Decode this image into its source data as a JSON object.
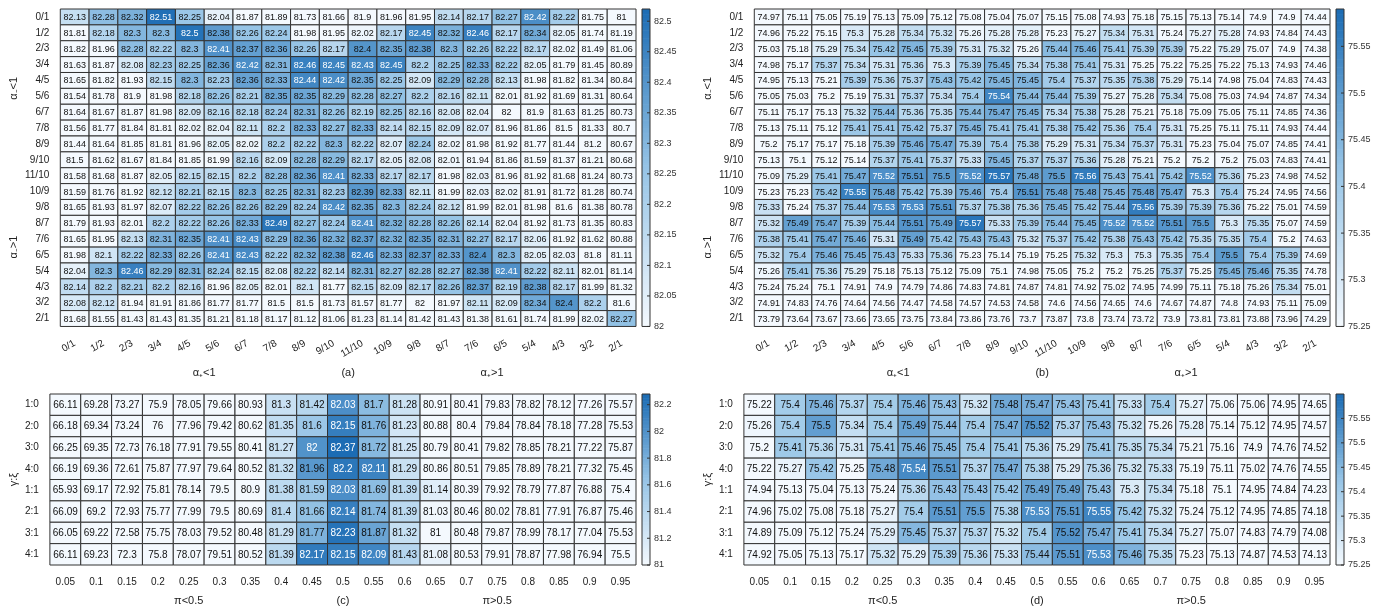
{
  "chart_data": [
    {
      "type": "heatmap",
      "xlabel": "(a)",
      "annotations": [
        "α₊<1",
        "α₊>1",
        "α₋<1",
        "α₋>1"
      ],
      "data_labels": true,
      "clim": [
        82,
        82.52
      ],
      "cticks": [
        82,
        82.05,
        82.1,
        82.15,
        82.2,
        82.25,
        82.3,
        82.35,
        82.4,
        82.45,
        82.5
      ],
      "categories": [
        "0/1",
        "1/2",
        "2/3",
        "3/4",
        "4/5",
        "5/6",
        "6/7",
        "7/8",
        "8/9",
        "9/10",
        "11/10",
        "10/9",
        "9/8",
        "8/7",
        "7/6",
        "6/5",
        "5/4",
        "4/3",
        "3/2",
        "2/1"
      ],
      "y_categories": [
        "0/1",
        "1/2",
        "2/3",
        "3/4",
        "4/5",
        "5/6",
        "6/7",
        "7/8",
        "8/9",
        "9/10",
        "11/10",
        "10/9",
        "9/8",
        "8/7",
        "7/6",
        "6/5",
        "5/4",
        "4/3",
        "3/2",
        "2/1"
      ],
      "cells": [
        [
          82.13,
          82.28,
          82.32,
          82.51,
          82.25,
          82.04,
          81.87,
          81.89,
          81.73,
          81.66,
          81.9,
          81.96,
          81.95,
          82.14,
          82.17,
          82.27,
          82.42,
          82.22,
          81.75,
          81
        ],
        [
          81.81,
          82.18,
          82.3,
          82.3,
          82.5,
          82.38,
          82.26,
          82.24,
          81.98,
          81.95,
          82.02,
          82.17,
          82.45,
          82.32,
          82.46,
          82.17,
          82.34,
          82.05,
          81.74,
          81.19
        ],
        [
          81.82,
          81.96,
          82.28,
          82.22,
          82.3,
          82.41,
          82.37,
          82.36,
          82.26,
          82.17,
          82.4,
          82.35,
          82.38,
          82.3,
          82.26,
          82.22,
          82.17,
          82.02,
          81.49,
          81.06
        ],
        [
          81.63,
          81.87,
          82.08,
          82.23,
          82.25,
          82.36,
          82.42,
          82.31,
          82.46,
          82.45,
          82.43,
          82.45,
          82.2,
          82.25,
          82.33,
          82.22,
          82.05,
          81.79,
          81.45,
          80.89
        ],
        [
          81.65,
          81.82,
          81.93,
          82.15,
          82.3,
          82.23,
          82.36,
          82.33,
          82.44,
          82.42,
          82.35,
          82.25,
          82.09,
          82.29,
          82.28,
          82.13,
          81.98,
          81.82,
          81.34,
          80.84
        ],
        [
          81.54,
          81.78,
          81.9,
          81.98,
          82.18,
          82.26,
          82.21,
          82.35,
          82.35,
          82.29,
          82.28,
          82.27,
          82.2,
          82.16,
          82.11,
          82.01,
          81.92,
          81.69,
          81.31,
          80.64
        ],
        [
          81.64,
          81.67,
          81.87,
          81.98,
          82.09,
          82.16,
          82.18,
          82.24,
          82.31,
          82.26,
          82.19,
          82.25,
          82.16,
          82.08,
          82.04,
          82,
          81.9,
          81.63,
          81.25,
          80.73
        ],
        [
          81.56,
          81.77,
          81.84,
          81.81,
          82.02,
          82.04,
          82.11,
          82.2,
          82.33,
          82.27,
          82.33,
          82.14,
          82.15,
          82.09,
          82.07,
          81.96,
          81.86,
          81.5,
          81.33,
          80.7
        ],
        [
          81.44,
          81.64,
          81.85,
          81.81,
          81.96,
          82.05,
          82.02,
          82.2,
          82.22,
          82.3,
          82.22,
          82.07,
          82.24,
          82.02,
          81.98,
          81.92,
          81.77,
          81.44,
          81.2,
          80.67
        ],
        [
          81.5,
          81.62,
          81.67,
          81.84,
          81.85,
          81.99,
          82.16,
          82.09,
          82.28,
          82.29,
          82.17,
          82.05,
          82.08,
          82.01,
          81.94,
          81.86,
          81.59,
          81.37,
          81.21,
          80.68
        ],
        [
          81.58,
          81.68,
          81.87,
          82.05,
          82.15,
          82.15,
          82.2,
          82.28,
          82.36,
          82.41,
          82.33,
          82.17,
          82.17,
          81.98,
          82.03,
          81.96,
          81.92,
          81.68,
          81.24,
          80.73
        ],
        [
          81.59,
          81.76,
          81.92,
          82.12,
          82.21,
          82.15,
          82.3,
          82.25,
          82.31,
          82.23,
          82.39,
          82.33,
          82.11,
          81.99,
          82.03,
          82.02,
          81.91,
          81.72,
          81.28,
          80.74
        ],
        [
          81.65,
          81.93,
          81.97,
          82.07,
          82.22,
          82.26,
          82.26,
          82.29,
          82.24,
          82.42,
          82.35,
          82.3,
          82.24,
          82.12,
          81.99,
          82.01,
          81.98,
          81.6,
          81.38,
          80.78
        ],
        [
          81.79,
          81.93,
          82.01,
          82.2,
          82.22,
          82.26,
          82.33,
          82.49,
          82.27,
          82.24,
          82.41,
          82.32,
          82.28,
          82.26,
          82.14,
          82.04,
          81.92,
          81.73,
          81.35,
          80.83
        ],
        [
          81.65,
          81.95,
          82.13,
          82.31,
          82.35,
          82.41,
          82.43,
          82.29,
          82.36,
          82.32,
          82.37,
          82.32,
          82.35,
          82.31,
          82.27,
          82.17,
          82.06,
          81.92,
          81.62,
          80.88
        ],
        [
          81.98,
          82.1,
          82.22,
          82.33,
          82.26,
          82.41,
          82.43,
          82.22,
          82.32,
          82.38,
          82.46,
          82.33,
          82.37,
          82.33,
          82.4,
          82.3,
          82.05,
          82.03,
          81.8,
          81.11
        ],
        [
          82.04,
          82.3,
          82.46,
          82.29,
          82.31,
          82.24,
          82.15,
          82.08,
          82.22,
          82.14,
          82.31,
          82.27,
          82.28,
          82.27,
          82.38,
          82.41,
          82.22,
          82.11,
          82.01,
          81.14
        ],
        [
          82.14,
          82.2,
          82.21,
          82.2,
          82.16,
          81.96,
          82.05,
          82.01,
          82.1,
          81.77,
          82.15,
          82.09,
          82.17,
          82.26,
          82.37,
          82.19,
          82.38,
          82.17,
          81.99,
          81.32
        ],
        [
          82.08,
          82.12,
          81.94,
          81.91,
          81.86,
          81.77,
          81.77,
          81.5,
          81.5,
          81.73,
          81.57,
          81.77,
          82,
          81.97,
          82.11,
          82.09,
          82.34,
          82.4,
          82.2,
          81.6
        ],
        [
          81.68,
          81.55,
          81.43,
          81.43,
          81.35,
          81.21,
          81.18,
          81.17,
          81.12,
          81.06,
          81.23,
          81.14,
          81.42,
          81.43,
          81.38,
          81.61,
          81.74,
          81.99,
          82.02,
          82.27
        ]
      ]
    },
    {
      "type": "heatmap",
      "xlabel": "(b)",
      "annotations": [
        "α₊<1",
        "α₊>1",
        "α₋<1",
        "α₋>1"
      ],
      "data_labels": true,
      "clim": [
        75.25,
        75.59
      ],
      "cticks": [
        75.25,
        75.3,
        75.35,
        75.4,
        75.45,
        75.5,
        75.55
      ],
      "categories": [
        "0/1",
        "1/2",
        "2/3",
        "3/4",
        "4/5",
        "5/6",
        "6/7",
        "7/8",
        "8/9",
        "9/10",
        "11/10",
        "10/9",
        "9/8",
        "8/7",
        "7/6",
        "6/5",
        "5/4",
        "4/3",
        "3/2",
        "2/1"
      ],
      "y_categories": [
        "0/1",
        "1/2",
        "2/3",
        "3/4",
        "4/5",
        "5/6",
        "6/7",
        "7/8",
        "8/9",
        "9/10",
        "11/10",
        "10/9",
        "9/8",
        "8/7",
        "7/6",
        "6/5",
        "5/4",
        "4/3",
        "3/2",
        "2/1"
      ],
      "cells": [
        [
          74.97,
          75.11,
          75.05,
          75.19,
          75.13,
          75.09,
          75.12,
          75.08,
          75.04,
          75.07,
          75.15,
          75.08,
          74.93,
          75.18,
          75.15,
          75.13,
          75.14,
          74.9,
          74.9,
          74.44
        ],
        [
          74.96,
          75.22,
          75.15,
          75.3,
          75.28,
          75.34,
          75.32,
          75.26,
          75.28,
          75.28,
          75.23,
          75.27,
          75.34,
          75.31,
          75.24,
          75.27,
          75.28,
          74.93,
          74.84,
          74.43
        ],
        [
          75.03,
          75.18,
          75.29,
          75.34,
          75.42,
          75.45,
          75.39,
          75.31,
          75.32,
          75.26,
          75.44,
          75.46,
          75.41,
          75.39,
          75.39,
          75.22,
          75.29,
          75.07,
          74.9,
          74.38
        ],
        [
          74.98,
          75.17,
          75.37,
          75.34,
          75.31,
          75.36,
          75.3,
          75.39,
          75.45,
          75.34,
          75.38,
          75.41,
          75.31,
          75.25,
          75.22,
          75.25,
          75.22,
          75.13,
          74.93,
          74.46
        ],
        [
          74.95,
          75.13,
          75.21,
          75.39,
          75.36,
          75.37,
          75.43,
          75.42,
          75.45,
          75.45,
          75.4,
          75.37,
          75.35,
          75.38,
          75.29,
          75.14,
          74.98,
          75.04,
          74.83,
          74.43
        ],
        [
          75.05,
          75.03,
          75.2,
          75.19,
          75.31,
          75.37,
          75.34,
          75.4,
          75.54,
          75.44,
          75.44,
          75.39,
          75.27,
          75.28,
          75.34,
          75.08,
          75.03,
          74.94,
          74.87,
          74.34
        ],
        [
          75.11,
          75.17,
          75.13,
          75.32,
          75.44,
          75.36,
          75.35,
          75.44,
          75.47,
          75.45,
          75.34,
          75.38,
          75.28,
          75.21,
          75.18,
          75.09,
          75.05,
          75.11,
          74.85,
          74.36
        ],
        [
          75.13,
          75.11,
          75.12,
          75.41,
          75.41,
          75.42,
          75.37,
          75.45,
          75.41,
          75.41,
          75.38,
          75.42,
          75.36,
          75.4,
          75.31,
          75.25,
          75.11,
          75.11,
          74.93,
          74.44
        ],
        [
          75.2,
          75.17,
          75.17,
          75.18,
          75.39,
          75.46,
          75.47,
          75.39,
          75.4,
          75.38,
          75.29,
          75.31,
          75.34,
          75.37,
          75.31,
          75.23,
          75.04,
          75.07,
          74.85,
          74.41
        ],
        [
          75.13,
          75.1,
          75.12,
          75.14,
          75.37,
          75.41,
          75.37,
          75.33,
          75.45,
          75.37,
          75.37,
          75.36,
          75.28,
          75.21,
          75.2,
          75.2,
          75.2,
          75.03,
          74.83,
          74.41
        ],
        [
          75.09,
          75.29,
          75.41,
          75.47,
          75.52,
          75.51,
          75.5,
          75.52,
          75.57,
          75.48,
          75.5,
          75.56,
          75.43,
          75.41,
          75.42,
          75.52,
          75.36,
          75.23,
          74.98,
          74.52
        ],
        [
          75.23,
          75.23,
          75.42,
          75.55,
          75.48,
          75.42,
          75.39,
          75.46,
          75.4,
          75.51,
          75.48,
          75.48,
          75.45,
          75.48,
          75.47,
          75.3,
          75.4,
          75.24,
          74.95,
          74.56
        ],
        [
          75.33,
          75.24,
          75.37,
          75.44,
          75.53,
          75.53,
          75.51,
          75.37,
          75.38,
          75.36,
          75.45,
          75.42,
          75.44,
          75.56,
          75.39,
          75.39,
          75.36,
          75.22,
          75.01,
          74.59
        ],
        [
          75.32,
          75.49,
          75.47,
          75.39,
          75.44,
          75.51,
          75.49,
          75.57,
          75.33,
          75.39,
          75.44,
          75.45,
          75.52,
          75.52,
          75.51,
          75.5,
          75.3,
          75.35,
          75.07,
          74.59
        ],
        [
          75.38,
          75.41,
          75.47,
          75.46,
          75.31,
          75.49,
          75.42,
          75.43,
          75.43,
          75.32,
          75.37,
          75.42,
          75.38,
          75.43,
          75.42,
          75.35,
          75.35,
          75.4,
          75.2,
          74.63
        ],
        [
          75.32,
          75.4,
          75.46,
          75.45,
          75.43,
          75.33,
          75.36,
          75.23,
          75.14,
          75.19,
          75.25,
          75.32,
          75.3,
          75.3,
          75.35,
          75.4,
          75.5,
          75.4,
          75.39,
          74.69
        ],
        [
          75.26,
          75.41,
          75.36,
          75.29,
          75.18,
          75.13,
          75.12,
          75.09,
          75.1,
          74.98,
          75.05,
          75.2,
          75.2,
          75.25,
          75.37,
          75.25,
          75.45,
          75.46,
          75.35,
          74.78
        ],
        [
          75.24,
          75.24,
          75.1,
          74.91,
          74.9,
          74.79,
          74.86,
          74.83,
          74.81,
          74.87,
          74.81,
          74.92,
          75.02,
          74.95,
          74.99,
          75.11,
          75.18,
          75.26,
          75.34,
          75.01
        ],
        [
          74.91,
          74.83,
          74.76,
          74.64,
          74.56,
          74.47,
          74.58,
          74.57,
          74.53,
          74.58,
          74.6,
          74.56,
          74.65,
          74.6,
          74.67,
          74.87,
          74.8,
          74.93,
          75.11,
          75.09
        ],
        [
          73.79,
          73.64,
          73.67,
          73.66,
          73.65,
          73.75,
          73.84,
          73.86,
          73.76,
          73.7,
          73.87,
          73.8,
          73.74,
          73.72,
          73.9,
          73.81,
          73.81,
          73.88,
          73.96,
          74.29
        ]
      ]
    },
    {
      "type": "heatmap",
      "xlabel": "(c)",
      "ylabel": "γ:ξ",
      "annotations": [
        "π<0.5",
        "π>0.5"
      ],
      "data_labels": true,
      "clim": [
        81,
        82.28
      ],
      "cticks": [
        81,
        81.2,
        81.4,
        81.6,
        81.8,
        82,
        82.2
      ],
      "categories": [
        "0.05",
        "0.1",
        "0.15",
        "0.2",
        "0.25",
        "0.3",
        "0.35",
        "0.4",
        "0.45",
        "0.5",
        "0.55",
        "0.6",
        "0.65",
        "0.7",
        "0.75",
        "0.8",
        "0.85",
        "0.9",
        "0.95"
      ],
      "y_categories": [
        "1:0",
        "2:0",
        "3:0",
        "4:0",
        "1:1",
        "2:1",
        "3:1",
        "4:1"
      ],
      "cells": [
        [
          66.11,
          69.28,
          73.27,
          75.9,
          78.05,
          79.66,
          80.93,
          81.3,
          81.42,
          82.03,
          81.7,
          81.28,
          80.91,
          80.41,
          79.83,
          78.82,
          78.12,
          77.26,
          75.57
        ],
        [
          66.18,
          69.34,
          73.24,
          76,
          77.96,
          79.42,
          80.62,
          81.35,
          81.6,
          82.15,
          81.76,
          81.23,
          80.88,
          80.4,
          79.84,
          78.84,
          78.18,
          77.28,
          75.53
        ],
        [
          66.25,
          69.35,
          72.73,
          76.18,
          77.91,
          79.55,
          80.41,
          81.27,
          82,
          82.37,
          81.72,
          81.25,
          80.79,
          80.41,
          79.82,
          78.85,
          78.21,
          77.22,
          75.87
        ],
        [
          66.19,
          69.36,
          72.61,
          75.87,
          77.97,
          79.64,
          80.52,
          81.32,
          81.96,
          82.2,
          82.11,
          81.29,
          80.86,
          80.51,
          79.85,
          78.89,
          78.21,
          77.32,
          75.45
        ],
        [
          65.93,
          69.17,
          72.92,
          75.81,
          78.14,
          79.5,
          80.9,
          81.38,
          81.59,
          82.03,
          81.69,
          81.39,
          81.14,
          80.39,
          79.92,
          78.79,
          77.87,
          76.88,
          75.4
        ],
        [
          66.09,
          69.2,
          72.93,
          75.77,
          77.99,
          79.5,
          80.69,
          81.4,
          81.66,
          82.14,
          81.74,
          81.39,
          81.03,
          80.46,
          80.02,
          78.81,
          77.91,
          76.87,
          75.46
        ],
        [
          66.05,
          69.22,
          72.58,
          75.75,
          78.03,
          79.52,
          80.48,
          81.29,
          81.77,
          82.23,
          81.87,
          81.32,
          81,
          80.48,
          79.87,
          78.99,
          78.17,
          77.04,
          75.53
        ],
        [
          66.11,
          69.23,
          72.3,
          75.8,
          78.07,
          79.51,
          80.52,
          81.39,
          82.17,
          82.15,
          82.09,
          81.43,
          81.08,
          80.53,
          79.91,
          78.87,
          77.98,
          76.94,
          75.5
        ]
      ]
    },
    {
      "type": "heatmap",
      "xlabel": "(d)",
      "ylabel": "γ:ξ",
      "annotations": [
        "π<0.5",
        "π>0.5"
      ],
      "data_labels": true,
      "clim": [
        75.25,
        75.6
      ],
      "cticks": [
        75.25,
        75.3,
        75.35,
        75.4,
        75.45,
        75.5,
        75.55
      ],
      "categories": [
        "0.05",
        "0.1",
        "0.15",
        "0.2",
        "0.25",
        "0.3",
        "0.35",
        "0.4",
        "0.45",
        "0.5",
        "0.55",
        "0.6",
        "0.65",
        "0.7",
        "0.75",
        "0.8",
        "0.85",
        "0.9",
        "0.95"
      ],
      "y_categories": [
        "1:0",
        "2:0",
        "3:0",
        "4:0",
        "1:1",
        "2:1",
        "3:1",
        "4:1"
      ],
      "cells": [
        [
          75.22,
          75.4,
          75.46,
          75.37,
          75.4,
          75.46,
          75.43,
          75.32,
          75.48,
          75.47,
          75.43,
          75.41,
          75.33,
          75.4,
          75.27,
          75.06,
          75.06,
          74.95,
          74.65
        ],
        [
          75.26,
          75.4,
          75.5,
          75.34,
          75.4,
          75.49,
          75.44,
          75.4,
          75.47,
          75.52,
          75.37,
          75.43,
          75.32,
          75.26,
          75.28,
          75.14,
          75.12,
          74.95,
          74.57
        ],
        [
          75.2,
          75.41,
          75.36,
          75.31,
          75.41,
          75.46,
          75.45,
          75.4,
          75.41,
          75.36,
          75.29,
          75.41,
          75.35,
          75.34,
          75.21,
          75.16,
          74.9,
          74.76,
          74.52
        ],
        [
          75.22,
          75.27,
          75.42,
          75.25,
          75.48,
          75.54,
          75.51,
          75.37,
          75.47,
          75.38,
          75.29,
          75.36,
          75.32,
          75.33,
          75.19,
          75.11,
          75.02,
          74.76,
          74.55
        ],
        [
          74.94,
          75.13,
          75.04,
          75.13,
          75.24,
          75.36,
          75.43,
          75.43,
          75.42,
          75.49,
          75.49,
          75.43,
          75.3,
          75.34,
          75.18,
          75.1,
          74.95,
          74.84,
          74.23
        ],
        [
          74.96,
          75.02,
          75.08,
          75.18,
          75.27,
          75.4,
          75.51,
          75.5,
          75.38,
          75.53,
          75.51,
          75.55,
          75.42,
          75.32,
          75.24,
          75.12,
          74.95,
          74.85,
          74.18
        ],
        [
          74.89,
          75.09,
          75.12,
          75.24,
          75.29,
          75.45,
          75.37,
          75.37,
          75.32,
          75.4,
          75.52,
          75.47,
          75.41,
          75.34,
          75.27,
          75.07,
          74.83,
          74.79,
          74.08
        ],
        [
          74.92,
          75.05,
          75.13,
          75.17,
          75.32,
          75.29,
          75.39,
          75.36,
          75.33,
          75.44,
          75.51,
          75.53,
          75.46,
          75.35,
          75.23,
          75.13,
          74.87,
          74.53,
          74.13
        ]
      ]
    }
  ]
}
